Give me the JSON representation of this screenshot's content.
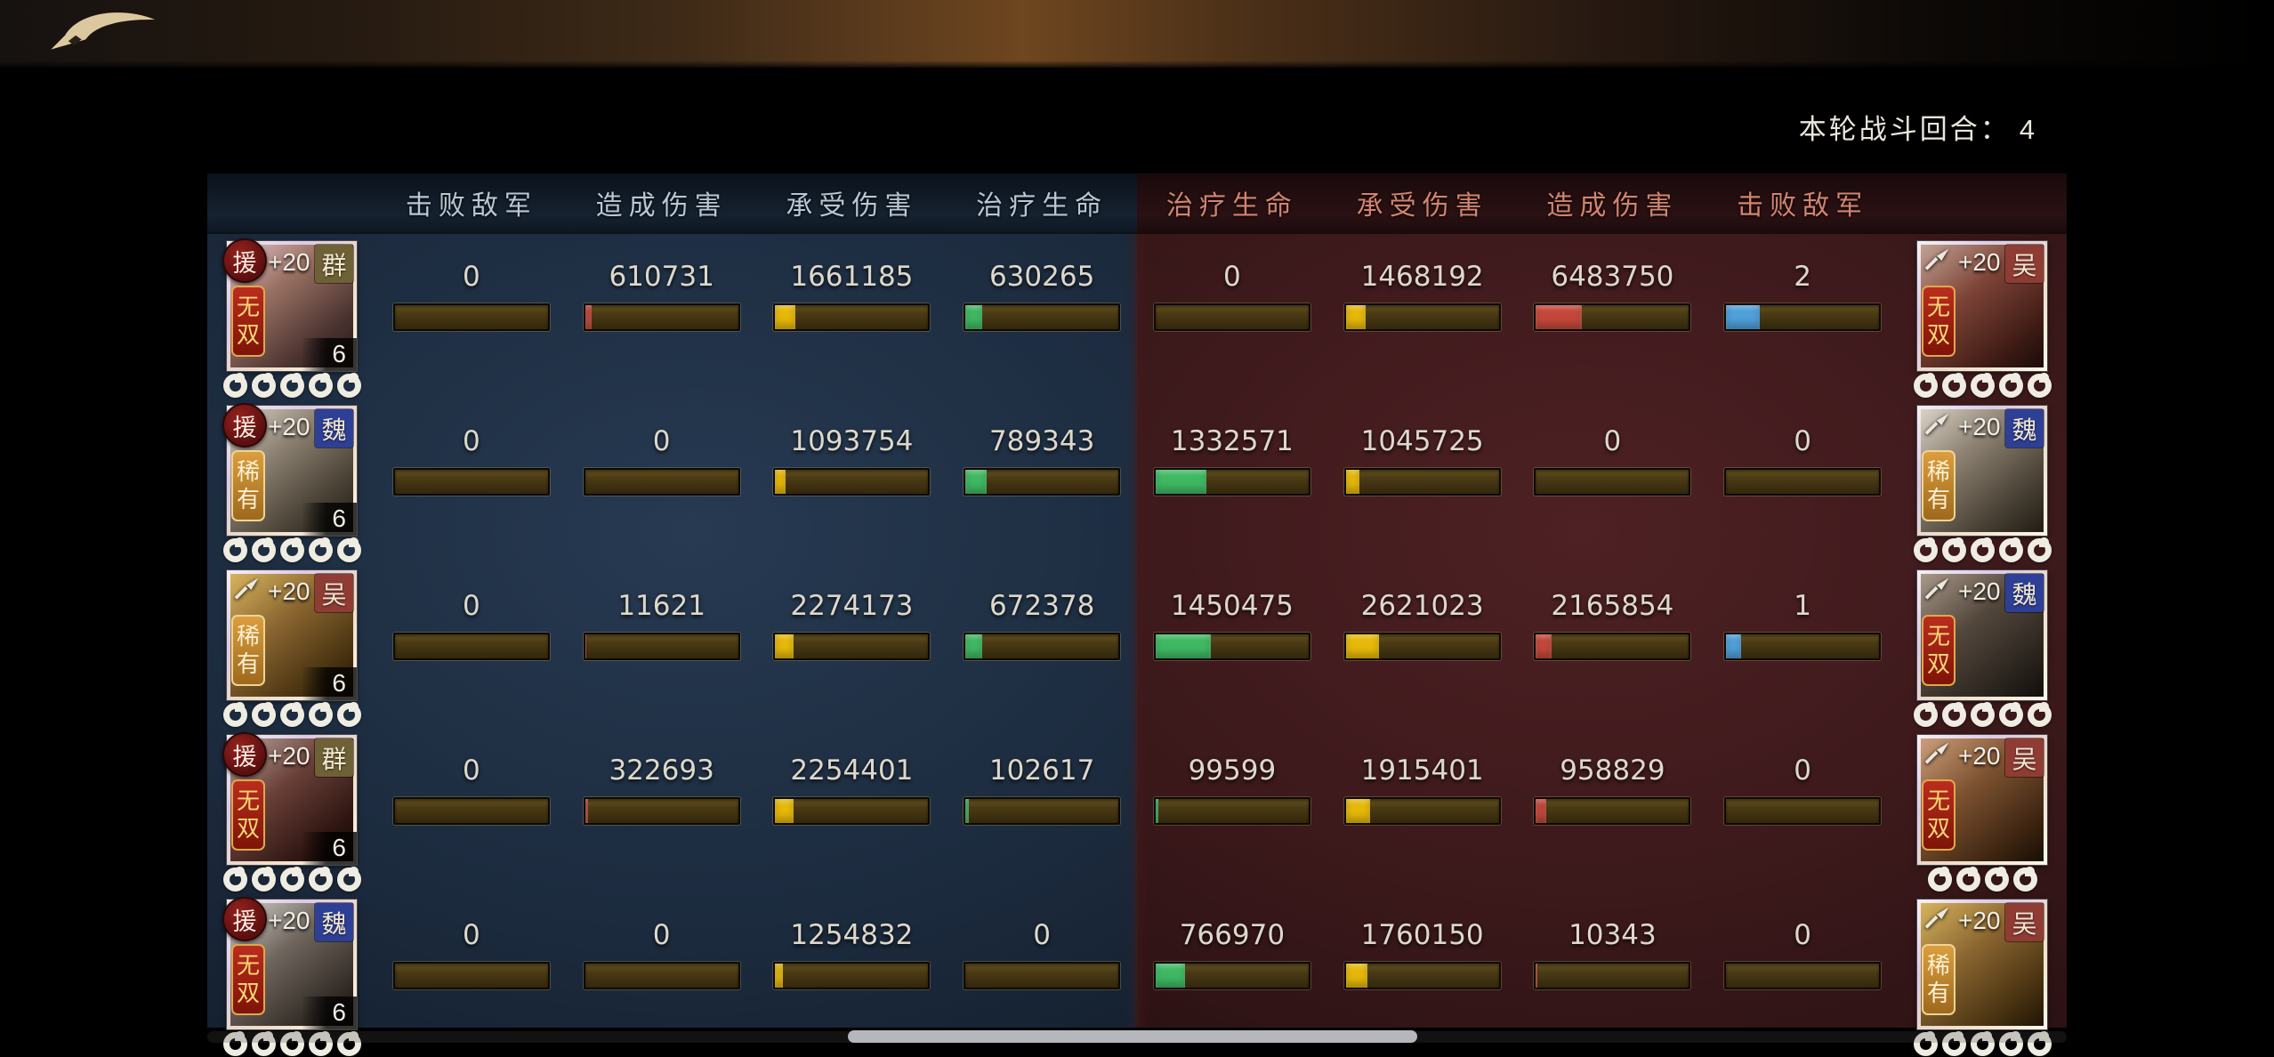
{
  "round_info": {
    "label": "本轮战斗回合：",
    "value": "4"
  },
  "left_headers": [
    "击败敌军",
    "造成伤害",
    "承受伤害",
    "治疗生命"
  ],
  "right_headers": [
    "治疗生命",
    "承受伤害",
    "造成伤害",
    "击败敌军"
  ],
  "colors": {
    "defeat_blue": "#4f9fd8",
    "damage_red": "#c4483a",
    "taken_yellow": "#e6b80a",
    "heal_green": "#3fb863",
    "faction_qun": "#6e6135",
    "faction_wei": "#2e3f96",
    "faction_wu": "#8e3c34"
  },
  "rows": [
    {
      "left_hero": {
        "badge_type": "circle",
        "badge_char": "援",
        "weapon": "",
        "plus": "+20",
        "faction": "群",
        "faction_color": "#6e6135",
        "tag": "无双",
        "tag_style": "wushuang",
        "level": "6",
        "stars": 5,
        "art": "linear-gradient(140deg,#e3c3cd 0%,#9a7263 35%,#4a3330 75%,#241a18 100%)"
      },
      "left_stats": [
        {
          "value": "0",
          "fill": "0%",
          "color": "#4f9fd8"
        },
        {
          "value": "610731",
          "fill": "4%",
          "color": "#c4483a"
        },
        {
          "value": "1661185",
          "fill": "13%",
          "color": "#e6b80a"
        },
        {
          "value": "630265",
          "fill": "11%",
          "color": "#3fb863"
        }
      ],
      "right_stats": [
        {
          "value": "0",
          "fill": "0%",
          "color": "#3fb863"
        },
        {
          "value": "1468192",
          "fill": "13%",
          "color": "#e6b80a"
        },
        {
          "value": "6483750",
          "fill": "30%",
          "color": "#c4483a"
        },
        {
          "value": "2",
          "fill": "22%",
          "color": "#4f9fd8"
        }
      ],
      "right_hero": {
        "badge_type": "weapon",
        "badge_char": "",
        "weapon": "bell-icon",
        "plus": "+20",
        "faction": "吴",
        "faction_color": "#8e3c34",
        "tag": "无双",
        "tag_style": "wushuang",
        "level": "",
        "stars": 5,
        "art": "linear-gradient(140deg,#c2a394 0%,#7c4336 40%,#3c1a14 80%,#1b0b08 100%)"
      }
    },
    {
      "left_hero": {
        "badge_type": "circle",
        "badge_char": "援",
        "weapon": "",
        "plus": "+20",
        "faction": "魏",
        "faction_color": "#2e3f96",
        "tag": "稀有",
        "tag_style": "xiyou",
        "level": "6",
        "stars": 5,
        "art": "linear-gradient(140deg,#d9d2c6 0%,#8d8273 35%,#473f33 75%,#211c14 100%)"
      },
      "left_stats": [
        {
          "value": "0",
          "fill": "0%",
          "color": "#4f9fd8"
        },
        {
          "value": "0",
          "fill": "0%",
          "color": "#c4483a"
        },
        {
          "value": "1093754",
          "fill": "7%",
          "color": "#e6b80a"
        },
        {
          "value": "789343",
          "fill": "14%",
          "color": "#3fb863"
        }
      ],
      "right_stats": [
        {
          "value": "1332571",
          "fill": "33%",
          "color": "#3fb863"
        },
        {
          "value": "1045725",
          "fill": "9%",
          "color": "#e6b80a"
        },
        {
          "value": "0",
          "fill": "0%",
          "color": "#c4483a"
        },
        {
          "value": "0",
          "fill": "0%",
          "color": "#4f9fd8"
        }
      ],
      "right_hero": {
        "badge_type": "weapon",
        "badge_char": "",
        "weapon": "hook-icon",
        "plus": "+20",
        "faction": "魏",
        "faction_color": "#2e3f96",
        "tag": "稀有",
        "tag_style": "xiyou",
        "level": "",
        "stars": 5,
        "art": "linear-gradient(140deg,#d9d2c6 0%,#8d8273 35%,#473f33 75%,#211c14 100%)"
      }
    },
    {
      "left_hero": {
        "badge_type": "weapon",
        "badge_char": "",
        "weapon": "sword-icon",
        "plus": "+20",
        "faction": "吴",
        "faction_color": "#8e3c34",
        "tag": "稀有",
        "tag_style": "xiyou",
        "level": "6",
        "stars": 5,
        "art": "linear-gradient(140deg,#d6b45e 0%,#8a6530 40%,#45300f 80%,#1f1405 100%)"
      },
      "left_stats": [
        {
          "value": "0",
          "fill": "0%",
          "color": "#4f9fd8"
        },
        {
          "value": "11621",
          "fill": "1%",
          "color": "#c4483a"
        },
        {
          "value": "2274173",
          "fill": "12%",
          "color": "#e6b80a"
        },
        {
          "value": "672378",
          "fill": "11%",
          "color": "#3fb863"
        }
      ],
      "right_stats": [
        {
          "value": "1450475",
          "fill": "36%",
          "color": "#3fb863"
        },
        {
          "value": "2621023",
          "fill": "22%",
          "color": "#e6b80a"
        },
        {
          "value": "2165854",
          "fill": "10%",
          "color": "#c4483a"
        },
        {
          "value": "1",
          "fill": "10%",
          "color": "#4f9fd8"
        }
      ],
      "right_hero": {
        "badge_type": "weapon",
        "badge_char": "",
        "weapon": "axe-icon",
        "plus": "+20",
        "faction": "魏",
        "faction_color": "#2e3f96",
        "tag": "无双",
        "tag_style": "wushuang",
        "level": "",
        "stars": 5,
        "art": "linear-gradient(140deg,#a9998a 0%,#54483d 40%,#28221c 80%,#120e0a 100%)"
      }
    },
    {
      "left_hero": {
        "badge_type": "circle",
        "badge_char": "援",
        "weapon": "",
        "plus": "+20",
        "faction": "群",
        "faction_color": "#6e6135",
        "tag": "无双",
        "tag_style": "wushuang",
        "level": "6",
        "stars": 5,
        "art": "linear-gradient(140deg,#b8a8a0 0%,#6a4038 40%,#2c1410 80%,#160a06 100%)"
      },
      "left_stats": [
        {
          "value": "0",
          "fill": "0%",
          "color": "#4f9fd8"
        },
        {
          "value": "322693",
          "fill": "2%",
          "color": "#c4483a"
        },
        {
          "value": "2254401",
          "fill": "12%",
          "color": "#e6b80a"
        },
        {
          "value": "102617",
          "fill": "2%",
          "color": "#3fb863"
        }
      ],
      "right_stats": [
        {
          "value": "99599",
          "fill": "2%",
          "color": "#3fb863"
        },
        {
          "value": "1915401",
          "fill": "16%",
          "color": "#e6b80a"
        },
        {
          "value": "958829",
          "fill": "7%",
          "color": "#c4483a"
        },
        {
          "value": "0",
          "fill": "0%",
          "color": "#4f9fd8"
        }
      ],
      "right_hero": {
        "badge_type": "weapon",
        "badge_char": "",
        "weapon": "axe-icon",
        "plus": "+20",
        "faction": "吴",
        "faction_color": "#8e3c34",
        "tag": "无双",
        "tag_style": "wushuang",
        "level": "",
        "stars": 4,
        "art": "linear-gradient(140deg,#cd9f7c 0%,#7d5230 40%,#3b2310 80%,#190e05 100%)"
      }
    },
    {
      "left_hero": {
        "badge_type": "circle",
        "badge_char": "援",
        "weapon": "",
        "plus": "+20",
        "faction": "魏",
        "faction_color": "#2e3f96",
        "tag": "无双",
        "tag_style": "wushuang",
        "level": "6",
        "stars": 5,
        "art": "linear-gradient(140deg,#d7d3cf 0%,#6f665e 40%,#332c26 80%,#16110d 100%)"
      },
      "left_stats": [
        {
          "value": "0",
          "fill": "0%",
          "color": "#4f9fd8"
        },
        {
          "value": "0",
          "fill": "0%",
          "color": "#c4483a"
        },
        {
          "value": "1254832",
          "fill": "5%",
          "color": "#e6b80a"
        },
        {
          "value": "0",
          "fill": "0%",
          "color": "#3fb863"
        }
      ],
      "right_stats": [
        {
          "value": "766970",
          "fill": "19%",
          "color": "#3fb863"
        },
        {
          "value": "1760150",
          "fill": "14%",
          "color": "#e6b80a"
        },
        {
          "value": "10343",
          "fill": "1%",
          "color": "#c4483a"
        },
        {
          "value": "0",
          "fill": "0%",
          "color": "#4f9fd8"
        }
      ],
      "right_hero": {
        "badge_type": "weapon",
        "badge_char": "",
        "weapon": "sword-icon",
        "plus": "+20",
        "faction": "吴",
        "faction_color": "#8e3c34",
        "tag": "稀有",
        "tag_style": "xiyou",
        "level": "",
        "stars": 5,
        "art": "linear-gradient(140deg,#d6b45e 0%,#8a6530 40%,#45300f 80%,#1f1405 100%)"
      }
    }
  ]
}
